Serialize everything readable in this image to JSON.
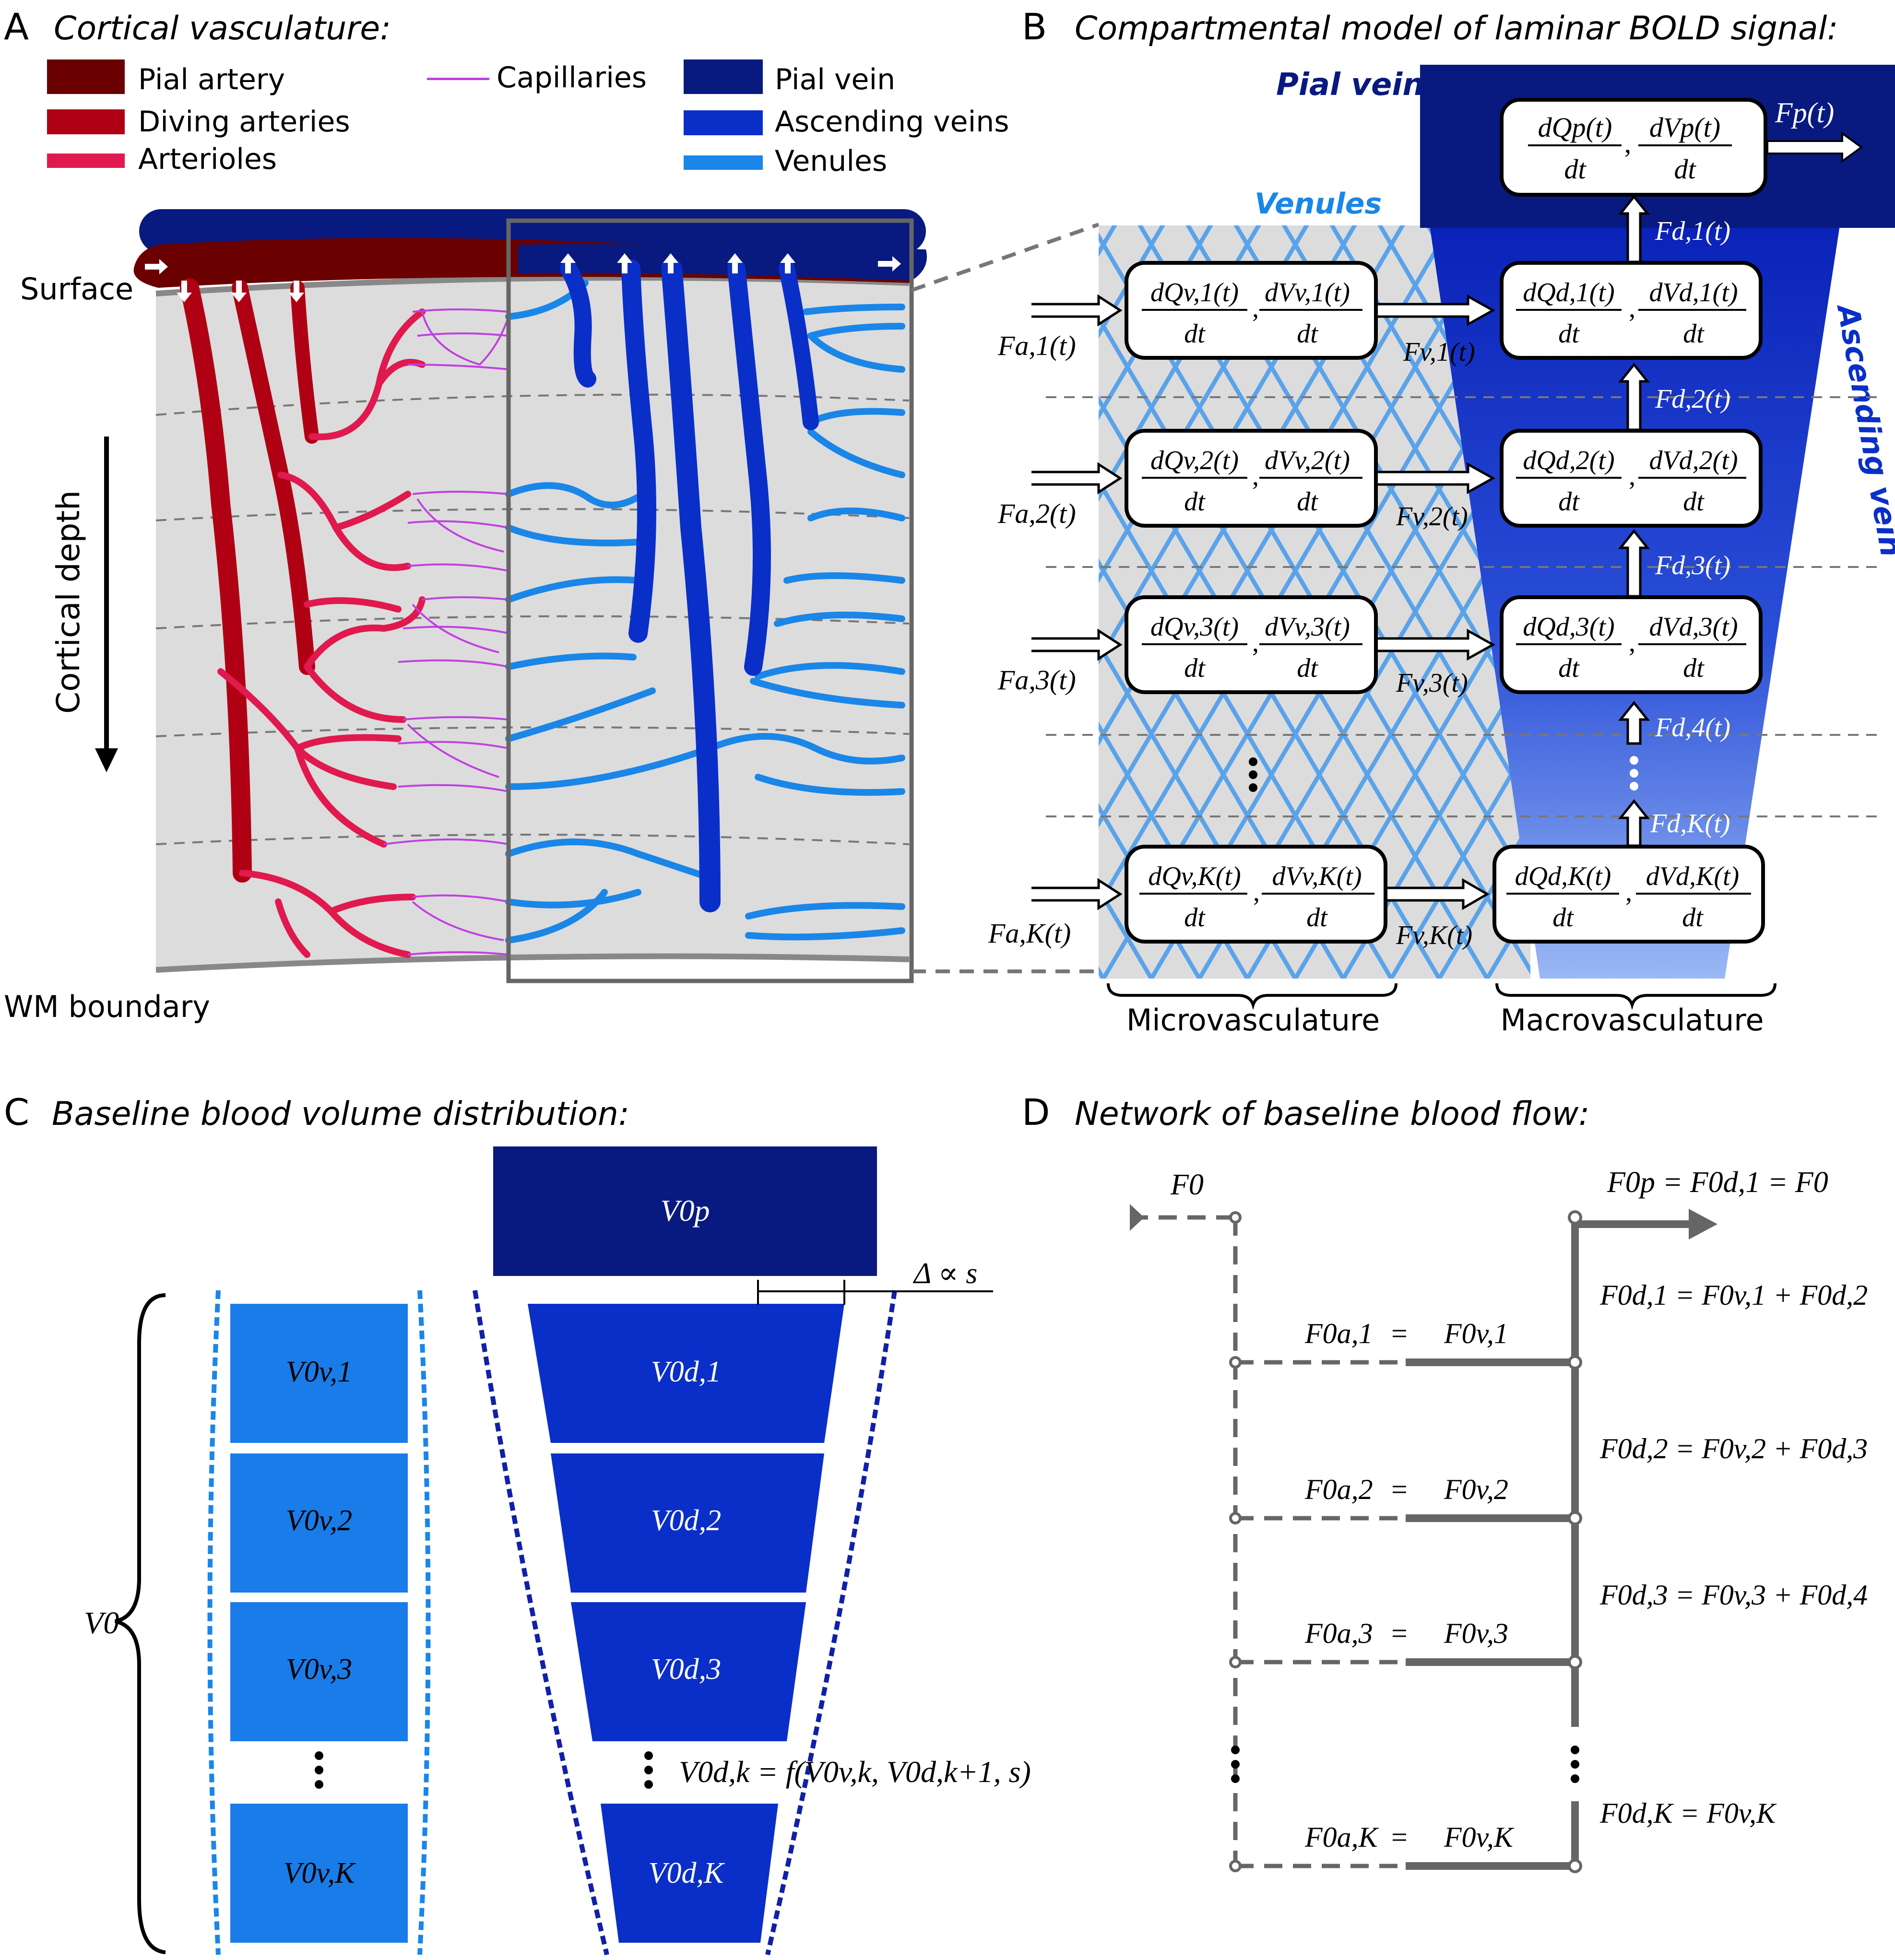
{
  "colors": {
    "pial_artery": "#6a0000",
    "diving_arteries": "#b00014",
    "arterioles": "#e0194f",
    "capillaries": "#c040e0",
    "pial_vein": "#081a80",
    "ascending_veins": "#0a2fc8",
    "venules": "#1a86e8",
    "tissue": "#dcdcdc"
  },
  "panelA": {
    "letter": "A",
    "title": "Cortical vasculature:",
    "legend": [
      {
        "label": "Pial artery",
        "color": "#6a0000"
      },
      {
        "label": "Diving arteries",
        "color": "#b00014"
      },
      {
        "label": "Arterioles",
        "color": "#e0194f"
      },
      {
        "label": "Capillaries",
        "color": "#c040e0"
      },
      {
        "label": "Pial vein",
        "color": "#081a80"
      },
      {
        "label": "Ascending veins",
        "color": "#0a2fc8"
      },
      {
        "label": "Venules",
        "color": "#1a86e8"
      }
    ],
    "surface_label": "Surface",
    "depth_label": "Cortical depth",
    "wm_label": "WM boundary"
  },
  "panelB": {
    "letter": "B",
    "title": "Compartmental model of laminar BOLD signal:",
    "pial_vein_label": "Pial vein",
    "venules_label": "Venules",
    "ascending_label": "Ascending vein",
    "micro_label": "Microvasculature",
    "macro_label": "Macrovasculature",
    "pial_box": {
      "num1": "dQp(t)",
      "num2": "dVp(t)",
      "den": "dt"
    },
    "pial_out": "Fp(t)",
    "layers": [
      {
        "vbox": [
          "dQv,1(t)",
          "dVv,1(t)"
        ],
        "dbox": [
          "dQd,1(t)",
          "dVd,1(t)"
        ],
        "fa": "Fa,1(t)",
        "fv": "Fv,1(t)",
        "fd": "Fd,1(t)"
      },
      {
        "vbox": [
          "dQv,2(t)",
          "dVv,2(t)"
        ],
        "dbox": [
          "dQd,2(t)",
          "dVd,2(t)"
        ],
        "fa": "Fa,2(t)",
        "fv": "Fv,2(t)",
        "fd": "Fd,2(t)"
      },
      {
        "vbox": [
          "dQv,3(t)",
          "dVv,3(t)"
        ],
        "dbox": [
          "dQd,3(t)",
          "dVd,3(t)"
        ],
        "fa": "Fa,3(t)",
        "fv": "Fv,3(t)",
        "fd": "Fd,3(t)"
      },
      {
        "vbox": [
          "dQv,K(t)",
          "dVv,K(t)"
        ],
        "dbox": [
          "dQd,K(t)",
          "dVd,K(t)"
        ],
        "fa": "Fa,K(t)",
        "fv": "Fv,K(t)",
        "fd": "Fd,4(t)"
      }
    ],
    "fdK": "Fd,K(t)",
    "den": "dt"
  },
  "panelC": {
    "letter": "C",
    "title": "Baseline blood volume distribution:",
    "v0": "V0",
    "v0p": "V0p",
    "venules": [
      "V0v,1",
      "V0v,2",
      "V0v,3",
      "V0v,K"
    ],
    "ascending": [
      "V0d,1",
      "V0d,2",
      "V0d,3",
      "V0d,K"
    ],
    "formula": "V0d,k = f(V0v,k, V0d,k+1, s)",
    "delta": "Δ ∝ s"
  },
  "panelD": {
    "letter": "D",
    "title": "Network of baseline blood flow:",
    "f0": "F0",
    "top_eq": "F0p = F0d,1 = F0",
    "rows": [
      {
        "left": "F0a,1",
        "eq": "=",
        "right": "F0v,1"
      },
      {
        "left": "F0a,2",
        "eq": "=",
        "right": "F0v,2"
      },
      {
        "left": "F0a,3",
        "eq": "=",
        "right": "F0v,3"
      },
      {
        "left": "F0a,K",
        "eq": "=",
        "right": "F0v,K"
      }
    ],
    "sums": [
      "F0d,1 = F0v,1 + F0d,2",
      "F0d,2 = F0v,2 + F0d,3",
      "F0d,3 = F0v,3 + F0d,4",
      "F0d,K = F0v,K"
    ]
  }
}
